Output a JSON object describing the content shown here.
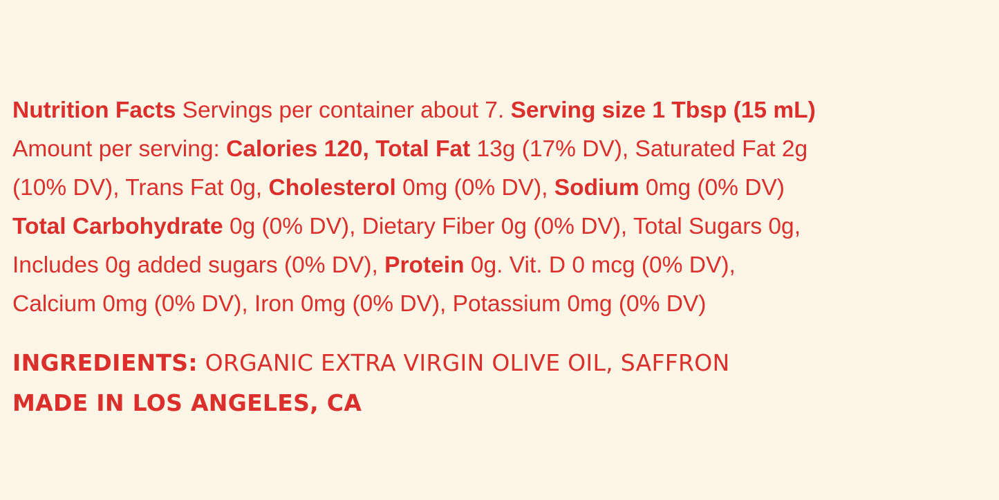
{
  "colors": {
    "background": "#fdf6e6",
    "text": "#dc2f2c"
  },
  "nutrition_lines": [
    [
      {
        "text": "Nutrition Facts",
        "bold": true
      },
      {
        "text": " Servings per container about 7. ",
        "bold": false
      },
      {
        "text": "Serving size 1 Tbsp (15 mL)",
        "bold": true
      }
    ],
    [
      {
        "text": "Amount per serving: ",
        "bold": false
      },
      {
        "text": "Calories 120, Total Fat",
        "bold": true
      },
      {
        "text": " 13g (17% DV), Saturated Fat 2g",
        "bold": false
      }
    ],
    [
      {
        "text": "(10% DV), Trans Fat 0g, ",
        "bold": false
      },
      {
        "text": "Cholesterol",
        "bold": true
      },
      {
        "text": " 0mg (0% DV), ",
        "bold": false
      },
      {
        "text": "Sodium",
        "bold": true
      },
      {
        "text": " 0mg (0% DV)",
        "bold": false
      }
    ],
    [
      {
        "text": "Total Carbohydrate",
        "bold": true
      },
      {
        "text": " 0g (0% DV), Dietary Fiber 0g (0% DV), Total Sugars 0g,",
        "bold": false
      }
    ],
    [
      {
        "text": "Includes 0g added sugars (0% DV), ",
        "bold": false
      },
      {
        "text": "Protein",
        "bold": true
      },
      {
        "text": " 0g. Vit. D 0 mcg (0% DV),",
        "bold": false
      }
    ],
    [
      {
        "text": "Calcium 0mg (0% DV), Iron 0mg (0% DV), Potassium 0mg (0% DV)",
        "bold": false
      }
    ]
  ],
  "ingredients": {
    "label": "INGREDIENTS:",
    "value": " ORGANIC EXTRA VIRGIN OLIVE OIL, SAFFRON",
    "origin": "MADE IN LOS ANGELES, CA"
  }
}
